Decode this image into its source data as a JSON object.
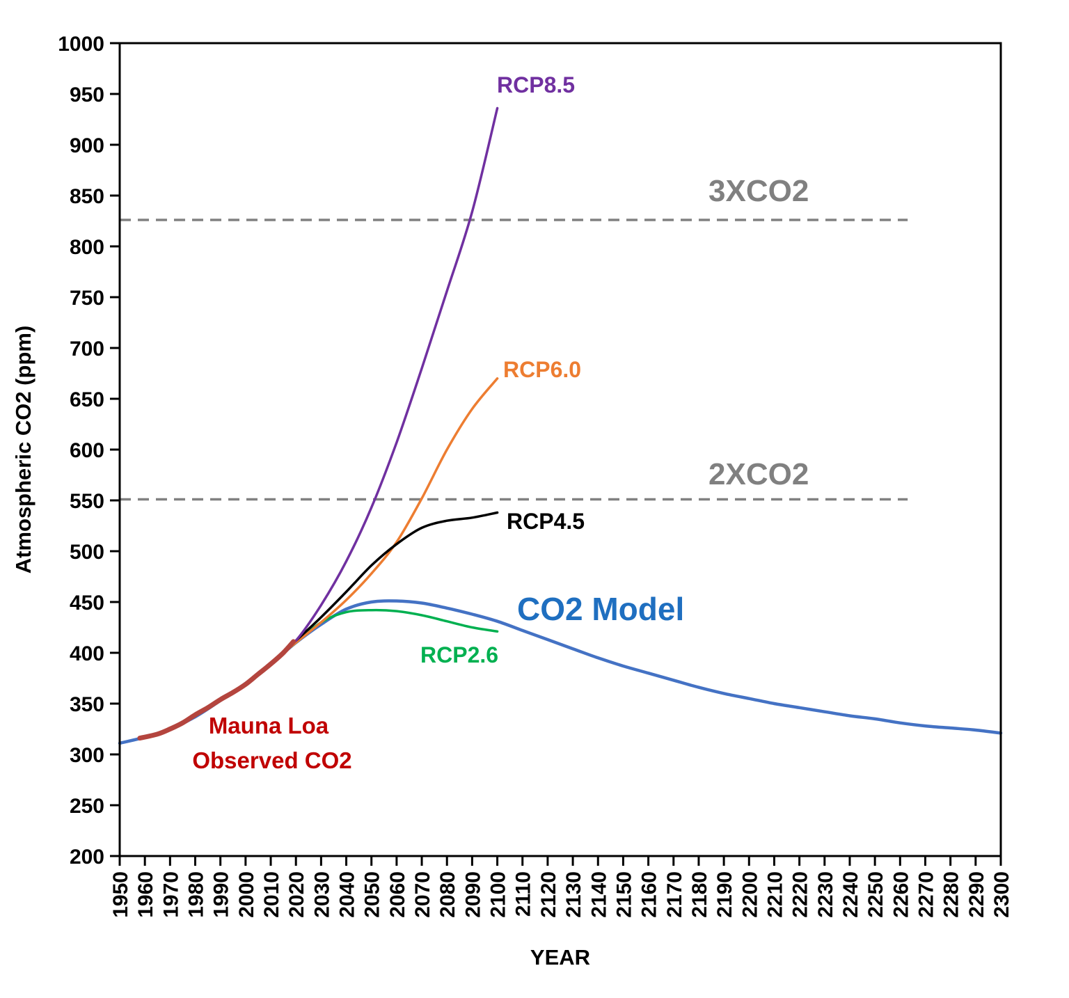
{
  "chart_data": {
    "type": "line",
    "xlabel": "YEAR",
    "ylabel": "Atmospheric CO2 (ppm)",
    "xlim": [
      1950,
      2300
    ],
    "ylim": [
      200,
      1000
    ],
    "x_ticks": [
      "1950",
      "1960",
      "1970",
      "1980",
      "1990",
      "2000",
      "2010",
      "2020",
      "2030",
      "2040",
      "2050",
      "2060",
      "2070",
      "2080",
      "2090",
      "2100",
      "2110",
      "2120",
      "2130",
      "2140",
      "2150",
      "2160",
      "2170",
      "2180",
      "2190",
      "2200",
      "2210",
      "2220",
      "2230",
      "2240",
      "2250",
      "2260",
      "2270",
      "2280",
      "2290",
      "2300"
    ],
    "y_ticks": [
      "200",
      "250",
      "300",
      "350",
      "400",
      "450",
      "500",
      "550",
      "600",
      "650",
      "700",
      "750",
      "800",
      "850",
      "900",
      "950",
      "1000"
    ],
    "grid": false,
    "series": [
      {
        "name": "CO2 Model",
        "color": "#4472C4",
        "label_color": "#1F6FC0",
        "x": [
          1950,
          1960,
          1970,
          1980,
          1990,
          2000,
          2010,
          2020,
          2030,
          2040,
          2050,
          2060,
          2070,
          2080,
          2090,
          2100,
          2110,
          2120,
          2130,
          2140,
          2150,
          2160,
          2170,
          2180,
          2190,
          2200,
          2210,
          2220,
          2230,
          2240,
          2250,
          2260,
          2270,
          2280,
          2290,
          2300
        ],
        "values": [
          311,
          317,
          325,
          337,
          353,
          370,
          389,
          410,
          428,
          443,
          450,
          451,
          449,
          444,
          438,
          431,
          422,
          413,
          404,
          395,
          387,
          380,
          373,
          366,
          360,
          355,
          350,
          346,
          342,
          338,
          335,
          331,
          328,
          326,
          324,
          321
        ]
      },
      {
        "name": "Mauna Loa Observed CO2",
        "color": "#B4453E",
        "label_color": "#C00000",
        "x": [
          1958,
          1965,
          1970,
          1975,
          1980,
          1985,
          1990,
          1995,
          2000,
          2005,
          2010,
          2015,
          2019
        ],
        "values": [
          316,
          320,
          325,
          331,
          339,
          346,
          354,
          361,
          369,
          379,
          389,
          400,
          411
        ]
      },
      {
        "name": "RCP8.5",
        "color": "#7030A0",
        "label_color": "#7030A0",
        "x": [
          2000,
          2010,
          2020,
          2030,
          2040,
          2050,
          2060,
          2070,
          2080,
          2090,
          2100
        ],
        "values": [
          369,
          390,
          412,
          447,
          490,
          543,
          607,
          680,
          756,
          834,
          936
        ]
      },
      {
        "name": "RCP6.0",
        "color": "#ED7D31",
        "label_color": "#ED7D31",
        "x": [
          2000,
          2010,
          2020,
          2030,
          2040,
          2050,
          2060,
          2070,
          2080,
          2090,
          2100
        ],
        "values": [
          369,
          390,
          410,
          430,
          452,
          478,
          509,
          552,
          600,
          640,
          670
        ]
      },
      {
        "name": "RCP4.5",
        "color": "#000000",
        "label_color": "#000000",
        "x": [
          2000,
          2010,
          2020,
          2030,
          2040,
          2050,
          2060,
          2070,
          2080,
          2090,
          2100
        ],
        "values": [
          369,
          390,
          412,
          435,
          460,
          486,
          507,
          523,
          530,
          533,
          538
        ]
      },
      {
        "name": "RCP2.6",
        "color": "#00B050",
        "label_color": "#00B050",
        "x": [
          2000,
          2010,
          2020,
          2030,
          2040,
          2050,
          2060,
          2070,
          2080,
          2090,
          2100
        ],
        "values": [
          369,
          390,
          410,
          430,
          440,
          442,
          441,
          437,
          431,
          425,
          421
        ]
      }
    ],
    "reference_lines": [
      {
        "name": "3XCO2",
        "y": 826,
        "x_end": 2263,
        "color": "#808080"
      },
      {
        "name": "2XCO2",
        "y": 551,
        "x_end": 2263,
        "color": "#808080"
      }
    ],
    "labels": {
      "rcp85": "RCP8.5",
      "rcp60": "RCP6.0",
      "rcp45": "RCP4.5",
      "rcp26": "RCP2.6",
      "model": "CO2 Model",
      "mauna_line1": "Mauna Loa",
      "mauna_line2": "Observed CO2",
      "three_x": "3XCO2",
      "two_x": "2XCO2"
    }
  }
}
